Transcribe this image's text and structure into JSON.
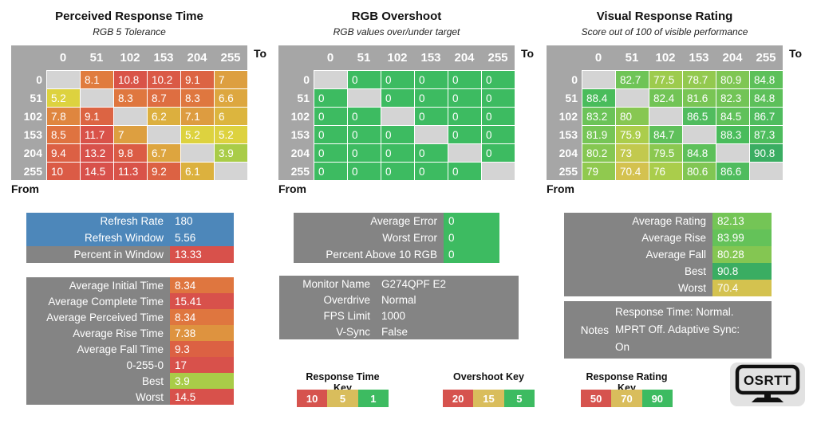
{
  "axis": {
    "to_label": "To",
    "from_label": "From",
    "ticks": [
      "0",
      "51",
      "102",
      "153",
      "204",
      "255"
    ]
  },
  "colors": {
    "header_gray": "#a6a6a6",
    "diagonal_gray": "#d4d4d4",
    "block_gray": "#848484",
    "blue": "#4d87ba",
    "red": "#d8514b",
    "tan": "#d9bd5c",
    "green": "#3dbb61",
    "logo_bg": "#e2e2e2"
  },
  "ramps": {
    "response_time": [
      [
        1,
        "#3dbb61"
      ],
      [
        3.9,
        "#a9cc48"
      ],
      [
        5.2,
        "#ddd23f"
      ],
      [
        6.1,
        "#dcb13e"
      ],
      [
        7,
        "#dd9f40"
      ],
      [
        8.1,
        "#e07c3e"
      ],
      [
        9.2,
        "#dc6243"
      ],
      [
        10.8,
        "#d95348"
      ],
      [
        13,
        "#d8514b"
      ]
    ],
    "overshoot": [
      [
        0,
        "#3dbb61"
      ],
      [
        5,
        "#3dbb61"
      ],
      [
        15,
        "#d9bd5c"
      ],
      [
        20,
        "#d8514b"
      ]
    ],
    "rating": [
      [
        50,
        "#d6534e"
      ],
      [
        70.4,
        "#d4c24f"
      ],
      [
        73,
        "#c2c94e"
      ],
      [
        76,
        "#aacd4b"
      ],
      [
        79,
        "#90c94f"
      ],
      [
        80.5,
        "#82c653"
      ],
      [
        82.7,
        "#6fc457"
      ],
      [
        84.8,
        "#5dc05a"
      ],
      [
        86.6,
        "#4fbc5e"
      ],
      [
        88.4,
        "#49bc5b"
      ],
      [
        90.8,
        "#3aad62"
      ],
      [
        95,
        "#33a45f"
      ]
    ]
  },
  "chart_data": [
    {
      "type": "heatmap",
      "title": "Perceived Response Time",
      "subtitle": "RGB 5 Tolerance",
      "ramp": "response_time",
      "categories_to": [
        "0",
        "51",
        "102",
        "153",
        "204",
        "255"
      ],
      "categories_from": [
        "0",
        "51",
        "102",
        "153",
        "204",
        "255"
      ],
      "values": [
        [
          null,
          8.1,
          10.8,
          10.2,
          9.1,
          7
        ],
        [
          5.2,
          null,
          8.3,
          8.7,
          8.3,
          6.6
        ],
        [
          7.8,
          9.1,
          null,
          6.2,
          7.1,
          6
        ],
        [
          8.5,
          11.7,
          7,
          null,
          5.2,
          5.2
        ],
        [
          9.4,
          13.2,
          9.8,
          6.7,
          null,
          3.9
        ],
        [
          10,
          14.5,
          11.3,
          9.2,
          6.1,
          null
        ]
      ]
    },
    {
      "type": "heatmap",
      "title": "RGB Overshoot",
      "subtitle": "RGB values over/under target",
      "ramp": "overshoot",
      "categories_to": [
        "0",
        "51",
        "102",
        "153",
        "204",
        "255"
      ],
      "categories_from": [
        "0",
        "51",
        "102",
        "153",
        "204",
        "255"
      ],
      "values": [
        [
          null,
          0,
          0,
          0,
          0,
          0
        ],
        [
          0,
          null,
          0,
          0,
          0,
          0
        ],
        [
          0,
          0,
          null,
          0,
          0,
          0
        ],
        [
          0,
          0,
          0,
          null,
          0,
          0
        ],
        [
          0,
          0,
          0,
          0,
          null,
          0
        ],
        [
          0,
          0,
          0,
          0,
          0,
          null
        ]
      ]
    },
    {
      "type": "heatmap",
      "title": "Visual Response Rating",
      "subtitle": "Score out of 100 of visible performance",
      "ramp": "rating",
      "categories_to": [
        "0",
        "51",
        "102",
        "153",
        "204",
        "255"
      ],
      "categories_from": [
        "0",
        "51",
        "102",
        "153",
        "204",
        "255"
      ],
      "values": [
        [
          null,
          82.7,
          77.5,
          78.7,
          80.9,
          84.8
        ],
        [
          88.4,
          null,
          82.4,
          81.6,
          82.3,
          84.8
        ],
        [
          83.2,
          80,
          null,
          86.5,
          84.5,
          86.7
        ],
        [
          81.9,
          75.9,
          84.7,
          null,
          88.3,
          87.3
        ],
        [
          80.2,
          73,
          79.5,
          84.8,
          null,
          90.8
        ],
        [
          79,
          70.4,
          76,
          80.6,
          86.6,
          null
        ]
      ]
    }
  ],
  "stat_blocks": [
    {
      "id": "refresh",
      "rows": [
        {
          "label": "Refresh Rate",
          "value": "180",
          "label_bg": "#4d87ba",
          "value_bg": "#4d87ba"
        },
        {
          "label": "Refresh Window",
          "value": "5.56",
          "label_bg": "#4d87ba",
          "value_bg": "#4d87ba"
        },
        {
          "label": "Percent in Window",
          "value": "13.33",
          "label_bg": "#848484",
          "value_bg": "#d8514b"
        }
      ]
    },
    {
      "id": "response_summary",
      "ramp": "response_time",
      "rows": [
        {
          "label": "Average Initial Time",
          "value": 8.34
        },
        {
          "label": "Average Complete Time",
          "value": 15.41
        },
        {
          "label": "Average Perceived Time",
          "value": 8.34
        },
        {
          "label": "Average Rise Time",
          "value": 7.38
        },
        {
          "label": "Average Fall Time",
          "value": 9.3
        },
        {
          "label": "0-255-0",
          "value": 17
        },
        {
          "label": "Best",
          "value": 3.9
        },
        {
          "label": "Worst",
          "value": 14.5
        }
      ]
    },
    {
      "id": "error_summary",
      "ramp": "overshoot",
      "rows": [
        {
          "label": "Average Error",
          "value": 0
        },
        {
          "label": "Worst Error",
          "value": 0
        },
        {
          "label": "Percent Above 10 RGB",
          "value": 0
        }
      ]
    },
    {
      "id": "monitor_info",
      "plain": true,
      "rows": [
        {
          "label": "Monitor Name",
          "value": "G274QPF E2"
        },
        {
          "label": "Overdrive",
          "value": "Normal"
        },
        {
          "label": "FPS Limit",
          "value": "1000"
        },
        {
          "label": "V-Sync",
          "value": "False"
        }
      ]
    },
    {
      "id": "rating_summary",
      "ramp": "rating",
      "rows": [
        {
          "label": "Average Rating",
          "value": 82.13
        },
        {
          "label": "Average Rise",
          "value": 83.99
        },
        {
          "label": "Average Fall",
          "value": 80.28
        },
        {
          "label": "Best",
          "value": 90.8
        },
        {
          "label": "Worst",
          "value": 70.4
        }
      ]
    }
  ],
  "notes": {
    "label": "Notes",
    "lines": [
      "Response Time: Normal.",
      "MPRT Off. Adaptive Sync:",
      "On"
    ]
  },
  "keys": [
    {
      "id": "response_time_key",
      "title": "Response Time Key",
      "cells": [
        {
          "label": "10",
          "color": "#d6534e"
        },
        {
          "label": "5",
          "color": "#d9bd5c"
        },
        {
          "label": "1",
          "color": "#3dbb61"
        }
      ]
    },
    {
      "id": "overshoot_key",
      "title": "Overshoot Key",
      "cells": [
        {
          "label": "20",
          "color": "#d6534e"
        },
        {
          "label": "15",
          "color": "#d9bd5c"
        },
        {
          "label": "5",
          "color": "#3dbb61"
        }
      ]
    },
    {
      "id": "response_rating_key",
      "title": "Response Rating Key",
      "cells": [
        {
          "label": "50",
          "color": "#d6534e"
        },
        {
          "label": "70",
          "color": "#d9bd5c"
        },
        {
          "label": "90",
          "color": "#3dbb61"
        }
      ]
    }
  ],
  "logo": {
    "text": "OSRTT"
  }
}
